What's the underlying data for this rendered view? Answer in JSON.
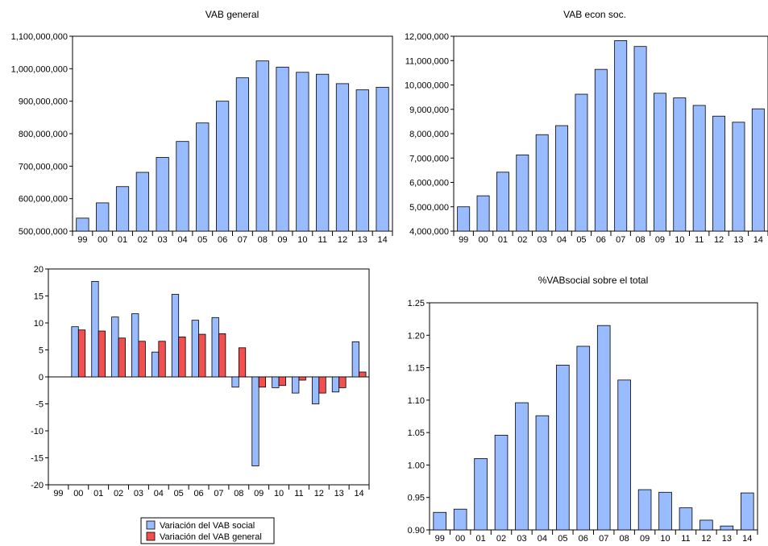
{
  "colors": {
    "social": "#99bbff",
    "general": "#f24f4f",
    "axis": "#000000",
    "background": "#ffffff"
  },
  "chart_data": [
    {
      "type": "bar",
      "title": "VAB general",
      "categories": [
        "99",
        "00",
        "01",
        "02",
        "03",
        "04",
        "05",
        "06",
        "07",
        "08",
        "09",
        "10",
        "11",
        "12",
        "13",
        "14"
      ],
      "values": [
        540000000,
        587000000,
        637000000,
        681000000,
        727000000,
        776000000,
        833000000,
        900000000,
        972000000,
        1024000000,
        1005000000,
        989000000,
        983000000,
        954000000,
        935000000,
        943000000
      ],
      "ylim": [
        500000000,
        1100000000
      ],
      "yticks": [
        "500,000,000",
        "600,000,000",
        "700,000,000",
        "800,000,000",
        "900,000,000",
        "1,000,000,000",
        "1,100,000,000"
      ],
      "ytick_values": [
        500000000,
        600000000,
        700000000,
        800000000,
        900000000,
        1000000000,
        1100000000
      ],
      "color": "#99bbff"
    },
    {
      "type": "bar",
      "title": "VAB econ soc.",
      "categories": [
        "99",
        "00",
        "01",
        "02",
        "03",
        "04",
        "05",
        "06",
        "07",
        "08",
        "09",
        "10",
        "11",
        "12",
        "13",
        "14"
      ],
      "values": [
        5000000,
        5450000,
        6420000,
        7130000,
        7960000,
        8330000,
        9620000,
        10640000,
        11820000,
        11580000,
        9660000,
        9470000,
        9160000,
        8720000,
        8470000,
        9020000
      ],
      "ylim": [
        4000000,
        12000000
      ],
      "yticks": [
        "4,000,000",
        "5,000,000",
        "6,000,000",
        "7,000,000",
        "8,000,000",
        "9,000,000",
        "10,000,000",
        "11,000,000",
        "12,000,000"
      ],
      "ytick_values": [
        4000000,
        5000000,
        6000000,
        7000000,
        8000000,
        9000000,
        10000000,
        11000000,
        12000000
      ],
      "color": "#99bbff"
    },
    {
      "type": "bar",
      "title": "",
      "categories": [
        "99",
        "00",
        "01",
        "02",
        "03",
        "04",
        "05",
        "06",
        "07",
        "08",
        "09",
        "10",
        "11",
        "12",
        "13",
        "14"
      ],
      "series": [
        {
          "name": "Variación del VAB social",
          "color": "#99bbff",
          "values": [
            null,
            9.3,
            17.7,
            11.1,
            11.7,
            4.6,
            15.3,
            10.5,
            11.0,
            -1.9,
            -16.5,
            -2.0,
            -3.0,
            -5.0,
            -2.8,
            6.5
          ]
        },
        {
          "name": "Variación del VAB general",
          "color": "#f24f4f",
          "values": [
            null,
            8.7,
            8.5,
            7.2,
            6.6,
            6.6,
            7.4,
            7.9,
            8.0,
            5.4,
            -1.9,
            -1.6,
            -0.6,
            -3.0,
            -2.0,
            0.9
          ]
        }
      ],
      "ylim": [
        -20,
        20
      ],
      "yticks": [
        "-20",
        "-15",
        "-10",
        "-5",
        "0",
        "5",
        "10",
        "15",
        "20"
      ],
      "ytick_values": [
        -20,
        -15,
        -10,
        -5,
        0,
        5,
        10,
        15,
        20
      ],
      "legend_position": "bottom"
    },
    {
      "type": "bar",
      "title": "%VABsocial sobre el total",
      "categories": [
        "99",
        "00",
        "01",
        "02",
        "03",
        "04",
        "05",
        "06",
        "07",
        "08",
        "09",
        "10",
        "11",
        "12",
        "13",
        "14"
      ],
      "values": [
        0.927,
        0.932,
        1.01,
        1.046,
        1.096,
        1.076,
        1.154,
        1.183,
        1.215,
        1.131,
        0.962,
        0.958,
        0.934,
        0.915,
        0.906,
        0.957
      ],
      "ylim": [
        0.9,
        1.25
      ],
      "yticks": [
        "0.90",
        "0.95",
        "1.00",
        "1.05",
        "1.10",
        "1.15",
        "1.20",
        "1.25"
      ],
      "ytick_values": [
        0.9,
        0.95,
        1.0,
        1.05,
        1.1,
        1.15,
        1.2,
        1.25
      ],
      "color": "#99bbff"
    }
  ]
}
